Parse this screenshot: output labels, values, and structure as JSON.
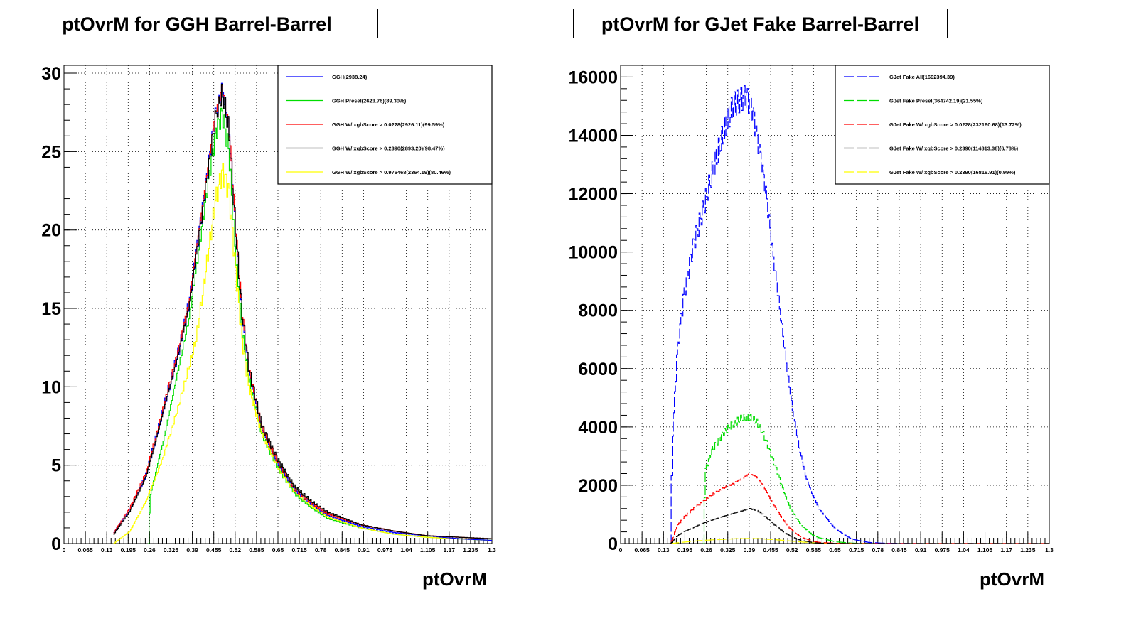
{
  "chart_data": [
    {
      "type": "line",
      "title": "ptOvrM for GGH Barrel-Barrel",
      "xlabel": "ptOvrM",
      "ylabel": "",
      "xlim": [
        0,
        1.3
      ],
      "ylim": [
        0,
        30.5
      ],
      "grid": true,
      "legend_position": "top-right",
      "x_tick_labels": [
        "0",
        "0.065",
        "0.13",
        "0.195",
        "0.26",
        "0.325",
        "0.39",
        "0.455",
        "0.52",
        "0.585",
        "0.65",
        "0.715",
        "0.78",
        "0.845",
        "0.91",
        "0.975",
        "1.04",
        "1.105",
        "1.17",
        "1.235",
        "1.3"
      ],
      "y_tick_labels": [
        "0",
        "5",
        "10",
        "15",
        "20",
        "25",
        "30"
      ],
      "y_ticks": [
        0,
        5,
        10,
        15,
        20,
        25,
        30
      ],
      "series": [
        {
          "name": "GGH(2938.24)",
          "color": "#0000ff",
          "dash": "solid",
          "x": [
            0.15,
            0.2,
            0.25,
            0.3,
            0.35,
            0.38,
            0.4,
            0.42,
            0.44,
            0.46,
            0.48,
            0.5,
            0.52,
            0.54,
            0.56,
            0.6,
            0.65,
            0.7,
            0.75,
            0.8,
            0.9,
            1.0,
            1.1,
            1.2,
            1.3
          ],
          "y": [
            0.7,
            2.2,
            4.5,
            8.5,
            12.5,
            15.5,
            18.5,
            21.5,
            24.5,
            27.5,
            29.0,
            26.5,
            20.0,
            14.5,
            11.0,
            7.3,
            5.0,
            3.4,
            2.5,
            1.8,
            1.1,
            0.7,
            0.5,
            0.3,
            0.2
          ]
        },
        {
          "name": "GGH Presel(2623.76)(89.30%)",
          "color": "#00dd00",
          "dash": "solid",
          "x": [
            0.255,
            0.26,
            0.3,
            0.35,
            0.38,
            0.4,
            0.42,
            0.44,
            0.46,
            0.48,
            0.5,
            0.52,
            0.54,
            0.56,
            0.6,
            0.65,
            0.7,
            0.75,
            0.8,
            0.9,
            1.0,
            1.1,
            1.2,
            1.3
          ],
          "y": [
            0.0,
            3.0,
            6.5,
            11.5,
            14.5,
            17.5,
            20.5,
            23.5,
            26.3,
            27.5,
            25.0,
            18.5,
            13.5,
            10.5,
            7.0,
            4.8,
            3.2,
            2.3,
            1.6,
            1.0,
            0.6,
            0.4,
            0.3,
            0.2
          ]
        },
        {
          "name": "GGH W/ xgbScore > 0.0228(2926.11)(99.59%)",
          "color": "#ff0000",
          "dash": "solid",
          "x": [
            0.15,
            0.2,
            0.25,
            0.3,
            0.35,
            0.38,
            0.4,
            0.42,
            0.44,
            0.46,
            0.48,
            0.5,
            0.52,
            0.54,
            0.56,
            0.6,
            0.65,
            0.7,
            0.75,
            0.8,
            0.9,
            1.0,
            1.1,
            1.2,
            1.3
          ],
          "y": [
            0.7,
            2.3,
            4.6,
            8.6,
            12.7,
            15.6,
            18.6,
            21.6,
            24.6,
            27.6,
            29.1,
            26.6,
            20.2,
            14.7,
            11.1,
            7.4,
            5.1,
            3.5,
            2.6,
            1.9,
            1.2,
            0.8,
            0.5,
            0.4,
            0.3
          ]
        },
        {
          "name": "GGH W/ xgbScore > 0.2390(2893.20)(98.47%)",
          "color": "#000000",
          "dash": "solid",
          "x": [
            0.15,
            0.2,
            0.25,
            0.3,
            0.35,
            0.38,
            0.4,
            0.42,
            0.44,
            0.46,
            0.48,
            0.5,
            0.52,
            0.54,
            0.56,
            0.6,
            0.65,
            0.7,
            0.75,
            0.8,
            0.9,
            1.0,
            1.1,
            1.2,
            1.3
          ],
          "y": [
            0.6,
            2.1,
            4.4,
            8.4,
            12.4,
            15.3,
            18.3,
            21.3,
            24.3,
            27.3,
            28.8,
            26.3,
            20.0,
            14.6,
            11.2,
            7.5,
            5.3,
            3.6,
            2.7,
            2.0,
            1.2,
            0.8,
            0.5,
            0.4,
            0.3
          ]
        },
        {
          "name": "GGH W/ xgbScore > 0.976468(2364.19)(80.46%)",
          "color": "#ffff00",
          "dash": "solid",
          "x": [
            0.15,
            0.2,
            0.25,
            0.3,
            0.35,
            0.4,
            0.42,
            0.44,
            0.46,
            0.48,
            0.5,
            0.52,
            0.54,
            0.56,
            0.6,
            0.65,
            0.7,
            0.75,
            0.8,
            0.9,
            1.0,
            1.1,
            1.2,
            1.3
          ],
          "y": [
            0.0,
            0.8,
            2.8,
            5.5,
            9.0,
            13.0,
            16.0,
            19.0,
            22.0,
            23.8,
            22.5,
            17.5,
            13.0,
            10.0,
            7.0,
            4.8,
            3.3,
            2.4,
            1.7,
            1.0,
            0.6,
            0.4,
            0.3,
            0.2
          ]
        }
      ]
    },
    {
      "type": "line",
      "title": "ptOvrM for GJet Fake Barrel-Barrel",
      "xlabel": "ptOvrM",
      "ylabel": "",
      "xlim": [
        0,
        1.3
      ],
      "ylim": [
        0,
        16400
      ],
      "grid": true,
      "legend_position": "top-right",
      "x_tick_labels": [
        "0",
        "0.065",
        "0.13",
        "0.195",
        "0.26",
        "0.325",
        "0.39",
        "0.455",
        "0.52",
        "0.585",
        "0.65",
        "0.715",
        "0.78",
        "0.845",
        "0.91",
        "0.975",
        "1.04",
        "1.105",
        "1.17",
        "1.235",
        "1.3"
      ],
      "y_tick_labels": [
        "0",
        "2000",
        "4000",
        "6000",
        "8000",
        "10000",
        "12000",
        "14000",
        "16000"
      ],
      "y_ticks": [
        0,
        2000,
        4000,
        6000,
        8000,
        10000,
        12000,
        14000,
        16000
      ],
      "series": [
        {
          "name": "GJet Fake All(1692394.39)",
          "color": "#0000ff",
          "dash": "dashed",
          "x": [
            0.15,
            0.155,
            0.17,
            0.19,
            0.22,
            0.25,
            0.28,
            0.31,
            0.34,
            0.36,
            0.38,
            0.4,
            0.42,
            0.44,
            0.46,
            0.48,
            0.5,
            0.52,
            0.54,
            0.56,
            0.58,
            0.6,
            0.65,
            0.7,
            0.75,
            0.8,
            0.9,
            1.0,
            1.1,
            1.2,
            1.3
          ],
          "y": [
            0,
            3500,
            6500,
            8500,
            10300,
            11500,
            12800,
            14000,
            15000,
            15200,
            15400,
            14800,
            13500,
            12000,
            10000,
            8200,
            6300,
            4600,
            3300,
            2300,
            1700,
            1200,
            500,
            150,
            40,
            10,
            0,
            0,
            0,
            0,
            0
          ]
        },
        {
          "name": "GJet Fake Presel(364742.19)(21.55%)",
          "color": "#00dd00",
          "dash": "dashed",
          "x": [
            0.25,
            0.255,
            0.28,
            0.31,
            0.34,
            0.37,
            0.39,
            0.41,
            0.43,
            0.45,
            0.47,
            0.49,
            0.51,
            0.53,
            0.55,
            0.58,
            0.6,
            0.65,
            0.7,
            0.75,
            0.8,
            0.9,
            1.0,
            1.1,
            1.2,
            1.3
          ],
          "y": [
            0,
            2500,
            3300,
            3800,
            4100,
            4300,
            4300,
            4200,
            3800,
            3200,
            2600,
            1900,
            1300,
            900,
            600,
            300,
            200,
            60,
            15,
            0,
            0,
            0,
            0,
            0,
            0,
            0
          ]
        },
        {
          "name": "GJet Fake W/ xgbScore > 0.0228(232160.68)(13.72%)",
          "color": "#ff0000",
          "dash": "dashed",
          "x": [
            0.15,
            0.17,
            0.19,
            0.22,
            0.25,
            0.28,
            0.31,
            0.34,
            0.37,
            0.39,
            0.41,
            0.43,
            0.45,
            0.47,
            0.49,
            0.51,
            0.53,
            0.55,
            0.58,
            0.6,
            0.65,
            0.7,
            0.8,
            0.9,
            1.0,
            1.1,
            1.2,
            1.3
          ],
          "y": [
            0,
            600,
            900,
            1200,
            1450,
            1700,
            1900,
            2050,
            2250,
            2400,
            2300,
            2000,
            1600,
            1200,
            850,
            550,
            350,
            200,
            90,
            40,
            10,
            0,
            0,
            0,
            0,
            0,
            0,
            0
          ]
        },
        {
          "name": "GJet Fake W/ xgbScore > 0.2390(114813.38)(6.78%)",
          "color": "#000000",
          "dash": "dashed",
          "x": [
            0.15,
            0.17,
            0.19,
            0.22,
            0.25,
            0.28,
            0.31,
            0.34,
            0.37,
            0.39,
            0.41,
            0.43,
            0.45,
            0.47,
            0.49,
            0.51,
            0.53,
            0.55,
            0.58,
            0.6,
            0.65,
            0.7,
            0.8,
            0.9,
            1.0,
            1.1,
            1.2,
            1.3
          ],
          "y": [
            0,
            250,
            400,
            550,
            700,
            820,
            930,
            1030,
            1130,
            1200,
            1150,
            1000,
            800,
            600,
            430,
            280,
            170,
            100,
            40,
            15,
            5,
            0,
            0,
            0,
            0,
            0,
            0,
            0
          ]
        },
        {
          "name": "GJet Fake W/ xgbScore > 0.2390(16816.91)(0.99%)",
          "color": "#ffff00",
          "dash": "dashed",
          "x": [
            0.15,
            0.2,
            0.25,
            0.3,
            0.35,
            0.39,
            0.43,
            0.47,
            0.51,
            0.55,
            0.6,
            0.7,
            0.8,
            1.0,
            1.3
          ],
          "y": [
            0,
            60,
            110,
            140,
            165,
            170,
            160,
            130,
            90,
            50,
            20,
            0,
            0,
            0,
            0
          ]
        }
      ]
    }
  ]
}
